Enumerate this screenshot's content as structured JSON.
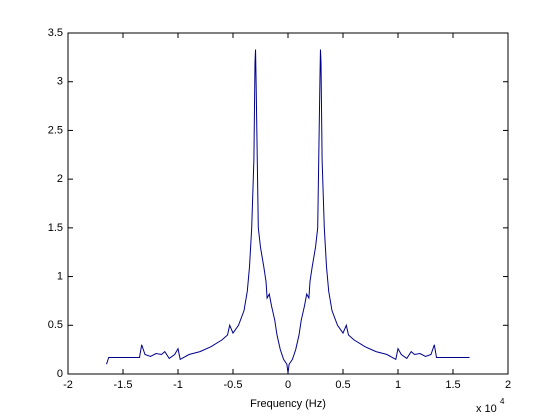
{
  "chart_data": {
    "type": "line",
    "xlabel": "Frequency (Hz)",
    "x_multiplier": "x 10",
    "x_multiplier_exponent": "4",
    "xlim": [
      -2,
      2
    ],
    "xticks": [
      -2,
      -1.5,
      -1,
      -0.5,
      0,
      0.5,
      1,
      1.5,
      2
    ],
    "ylim": [
      0,
      3.5
    ],
    "yticks": [
      0,
      0.5,
      1,
      1.5,
      2,
      2.5,
      3,
      3.5
    ],
    "grid": false,
    "series": [
      {
        "color": "#00008b",
        "x": [
          -1.65,
          -1.63,
          -1.35,
          -1.33,
          -1.3,
          -1.25,
          -1.2,
          -1.15,
          -1.12,
          -1.08,
          -1.03,
          -1.0,
          -0.98,
          -0.9,
          -0.8,
          -0.7,
          -0.6,
          -0.55,
          -0.53,
          -0.5,
          -0.45,
          -0.4,
          -0.37,
          -0.35,
          -0.33,
          -0.31,
          -0.3,
          -0.295,
          -0.29,
          -0.27,
          -0.25,
          -0.22,
          -0.2,
          -0.19,
          -0.17,
          -0.15,
          -0.12,
          -0.1,
          -0.07,
          -0.04,
          -0.01,
          0,
          0.01,
          0.04,
          0.07,
          0.1,
          0.12,
          0.15,
          0.17,
          0.19,
          0.2,
          0.22,
          0.25,
          0.27,
          0.29,
          0.295,
          0.3,
          0.31,
          0.33,
          0.35,
          0.37,
          0.4,
          0.45,
          0.5,
          0.53,
          0.55,
          0.6,
          0.7,
          0.8,
          0.9,
          0.98,
          1.0,
          1.03,
          1.08,
          1.12,
          1.15,
          1.2,
          1.25,
          1.3,
          1.33,
          1.35,
          1.63,
          1.65
        ],
        "values": [
          0.1,
          0.17,
          0.17,
          0.3,
          0.2,
          0.18,
          0.21,
          0.2,
          0.23,
          0.16,
          0.2,
          0.26,
          0.15,
          0.2,
          0.23,
          0.28,
          0.35,
          0.4,
          0.5,
          0.42,
          0.5,
          0.65,
          0.85,
          1.1,
          1.5,
          2.2,
          3.2,
          3.33,
          3.0,
          1.5,
          1.3,
          1.1,
          0.95,
          0.78,
          0.82,
          0.7,
          0.55,
          0.4,
          0.25,
          0.15,
          0.1,
          0.01,
          0.1,
          0.15,
          0.25,
          0.4,
          0.55,
          0.7,
          0.82,
          0.78,
          0.95,
          1.1,
          1.3,
          1.5,
          3.0,
          3.33,
          3.2,
          2.2,
          1.5,
          1.1,
          0.85,
          0.65,
          0.5,
          0.42,
          0.5,
          0.4,
          0.35,
          0.28,
          0.23,
          0.2,
          0.15,
          0.26,
          0.2,
          0.16,
          0.23,
          0.2,
          0.21,
          0.18,
          0.2,
          0.3,
          0.17,
          0.17,
          0.17
        ]
      }
    ]
  }
}
